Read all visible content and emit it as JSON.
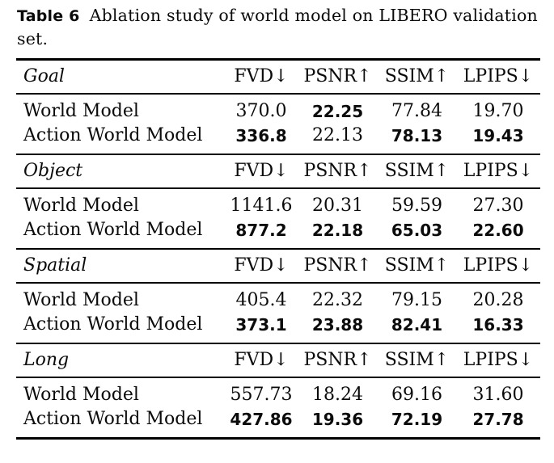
{
  "caption": {
    "label": "Table 6",
    "line1": "Ablation study of world model on LIBERO validation",
    "line2": "set."
  },
  "columns": [
    "FVD↓",
    "PSNR↑",
    "SSIM↑",
    "LPIPS↓"
  ],
  "sections": [
    {
      "name": "Goal",
      "rows": [
        {
          "label": "World Model",
          "values": [
            "370.0",
            "22.25",
            "77.84",
            "19.70"
          ],
          "bold": [
            false,
            true,
            false,
            false
          ]
        },
        {
          "label": "Action World Model",
          "values": [
            "336.8",
            "22.13",
            "78.13",
            "19.43"
          ],
          "bold": [
            true,
            false,
            true,
            true
          ]
        }
      ]
    },
    {
      "name": "Object",
      "rows": [
        {
          "label": "World Model",
          "values": [
            "1141.6",
            "20.31",
            "59.59",
            "27.30"
          ],
          "bold": [
            false,
            false,
            false,
            false
          ]
        },
        {
          "label": "Action World Model",
          "values": [
            "877.2",
            "22.18",
            "65.03",
            "22.60"
          ],
          "bold": [
            true,
            true,
            true,
            true
          ]
        }
      ]
    },
    {
      "name": "Spatial",
      "rows": [
        {
          "label": "World Model",
          "values": [
            "405.4",
            "22.32",
            "79.15",
            "20.28"
          ],
          "bold": [
            false,
            false,
            false,
            false
          ]
        },
        {
          "label": "Action World Model",
          "values": [
            "373.1",
            "23.88",
            "82.41",
            "16.33"
          ],
          "bold": [
            true,
            true,
            true,
            true
          ]
        }
      ]
    },
    {
      "name": "Long",
      "rows": [
        {
          "label": "World Model",
          "values": [
            "557.73",
            "18.24",
            "69.16",
            "31.60"
          ],
          "bold": [
            false,
            false,
            false,
            false
          ]
        },
        {
          "label": "Action World Model",
          "values": [
            "427.86",
            "19.36",
            "72.19",
            "27.78"
          ],
          "bold": [
            true,
            true,
            true,
            true
          ]
        }
      ]
    }
  ],
  "colors": {
    "text": "#0b0b0b",
    "rule": "#000000",
    "background": "#ffffff"
  }
}
